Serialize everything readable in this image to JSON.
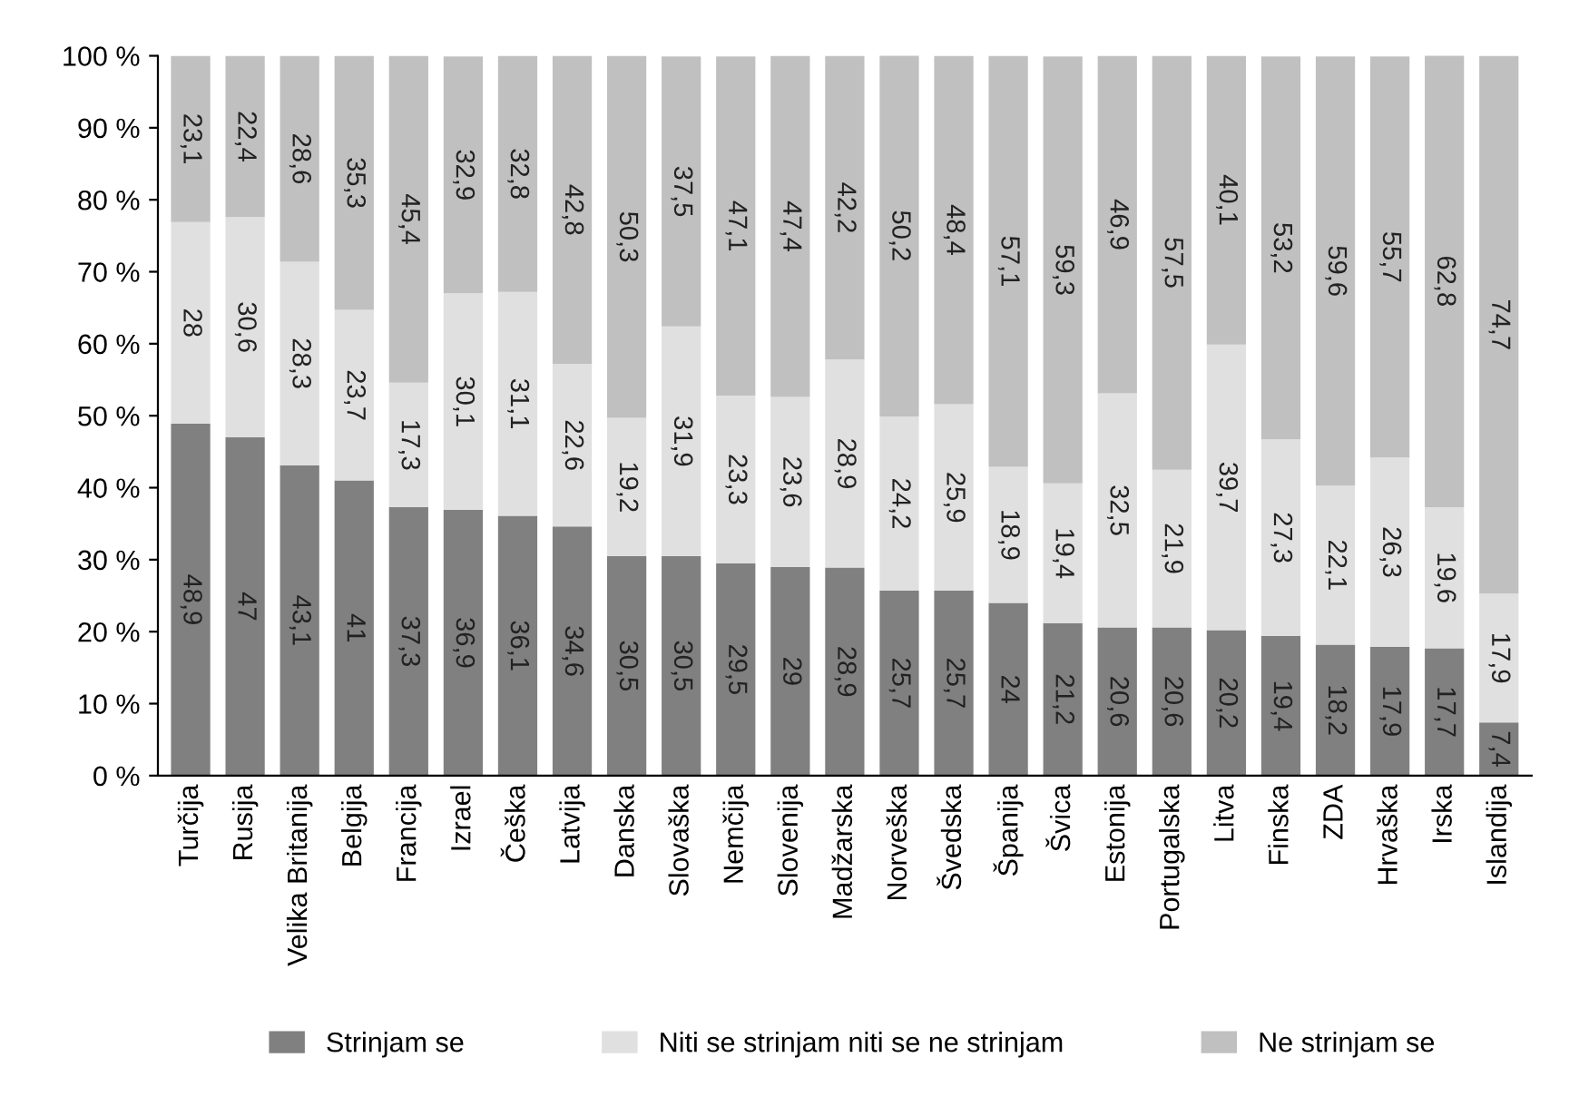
{
  "chart_data": {
    "type": "bar",
    "stacked": true,
    "categories": [
      "Turčija",
      "Rusija",
      "Velika Britanija",
      "Belgija",
      "Francija",
      "Izrael",
      "Češka",
      "Latvija",
      "Danska",
      "Slovaška",
      "Nemčija",
      "Slovenija",
      "Madžarska",
      "Norveška",
      "Švedska",
      "Španija",
      "Švica",
      "Estonija",
      "Portugalska",
      "Litva",
      "Finska",
      "ZDA",
      "Hrvaška",
      "Irska",
      "Islandija"
    ],
    "series": [
      {
        "name": "Strinjam se",
        "color": "#808080",
        "values": [
          48.9,
          47,
          43.1,
          41,
          37.3,
          36.9,
          36.1,
          34.6,
          30.5,
          30.5,
          29.5,
          29,
          28.9,
          25.7,
          25.7,
          24,
          21.2,
          20.6,
          20.6,
          20.2,
          19.4,
          18.2,
          17.9,
          17.7,
          7.4
        ],
        "value_labels": [
          "48,9",
          "47",
          "43,1",
          "41",
          "37,3",
          "36,9",
          "36,1",
          "34,6",
          "30,5",
          "30,5",
          "29,5",
          "29",
          "28,9",
          "25,7",
          "25,7",
          "24",
          "21,2",
          "20,6",
          "20,6",
          "20,2",
          "19,4",
          "18,2",
          "17,9",
          "17,7",
          "7,4"
        ]
      },
      {
        "name": "Niti se strinjam niti se ne strinjam",
        "color": "#e0e0e0",
        "values": [
          28,
          30.6,
          28.3,
          23.7,
          17.3,
          30.1,
          31.1,
          22.6,
          19.2,
          31.9,
          23.3,
          23.6,
          28.9,
          24.2,
          25.9,
          18.9,
          19.4,
          32.5,
          21.9,
          39.7,
          27.3,
          22.1,
          26.3,
          19.6,
          17.9
        ],
        "value_labels": [
          "28",
          "30,6",
          "28,3",
          "23,7",
          "17,3",
          "30,1",
          "31,1",
          "22,6",
          "19,2",
          "31,9",
          "23,3",
          "23,6",
          "28,9",
          "24,2",
          "25,9",
          "18,9",
          "19,4",
          "32,5",
          "21,9",
          "39,7",
          "27,3",
          "22,1",
          "26,3",
          "19,6",
          "17,9"
        ]
      },
      {
        "name": "Ne strinjam se",
        "color": "#c0c0c0",
        "values": [
          23.1,
          22.4,
          28.6,
          35.3,
          45.4,
          32.9,
          32.8,
          42.8,
          50.3,
          37.5,
          47.1,
          47.4,
          42.2,
          50.2,
          48.4,
          57.1,
          59.3,
          46.9,
          57.5,
          40.1,
          53.2,
          59.6,
          55.7,
          62.8,
          74.7
        ],
        "value_labels": [
          "23,1",
          "22,4",
          "28,6",
          "35,3",
          "45,4",
          "32,9",
          "32,8",
          "42,8",
          "50,3",
          "37,5",
          "47,1",
          "47,4",
          "42,2",
          "50,2",
          "48,4",
          "57,1",
          "59,3",
          "46,9",
          "57,5",
          "40,1",
          "53,2",
          "59,6",
          "55,7",
          "62,8",
          "74,7"
        ]
      }
    ],
    "ylim": [
      0,
      100
    ],
    "yticks": [
      {
        "value": 0,
        "label": "0 %"
      },
      {
        "value": 10,
        "label": "10 %"
      },
      {
        "value": 20,
        "label": "20 %"
      },
      {
        "value": 30,
        "label": "30 %"
      },
      {
        "value": 40,
        "label": "40 %"
      },
      {
        "value": 50,
        "label": "50 %"
      },
      {
        "value": 60,
        "label": "60 %"
      },
      {
        "value": 70,
        "label": "70 %"
      },
      {
        "value": 80,
        "label": "80 %"
      },
      {
        "value": 90,
        "label": "90 %"
      },
      {
        "value": 100,
        "label": "100 %"
      }
    ],
    "grid": false,
    "legend": "bottom"
  }
}
